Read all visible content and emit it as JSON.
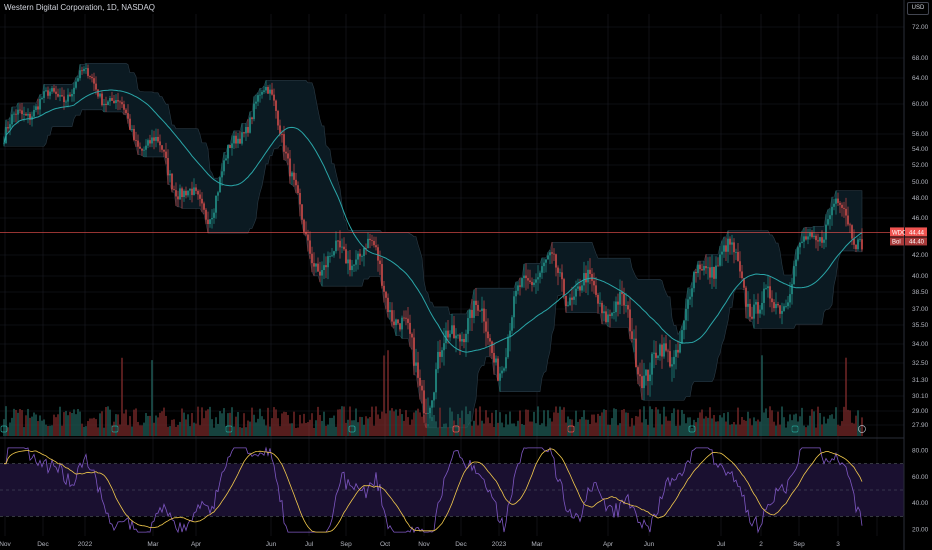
{
  "header": {
    "title": "Western Digital Corporation, 1D, NASDAQ",
    "currency": "USD"
  },
  "colors": {
    "background": "#000000",
    "grid": "#1b1d24",
    "up": "#26a69a",
    "down": "#ef5350",
    "channel_fill": "#0b1a22",
    "channel_line": "#2a3a45",
    "ma_line": "#2aa6a8",
    "price_line": "#ef5350",
    "rsi_line": "#7e57c2",
    "rsi_ma": "#f2c94c",
    "rsi_band": "#1a1030"
  },
  "chart_data": [
    {
      "type": "candlestick",
      "symbol": "WDC",
      "ylim": [
        27.5,
        75
      ],
      "y_ticks": [
        "72.00",
        "68.00",
        "64.00",
        "60.00",
        "56.00",
        "54.00",
        "52.00",
        "50.00",
        "48.00",
        "46.00",
        "42.00",
        "40.00",
        "38.50",
        "37.00",
        "35.50",
        "34.00",
        "32.50",
        "31.30",
        "30.10",
        "29.00",
        "27.90"
      ],
      "x_ticks": [
        "Nov",
        "Dec",
        "2022",
        "Mar",
        "Apr",
        "Jun",
        "Jul",
        "Sep",
        "Oct",
        "Nov",
        "Dec",
        "2023",
        "Mar",
        "Apr",
        "Jun",
        "Jul",
        "2",
        "Sep",
        "3"
      ],
      "price_key_points": [
        {
          "x": "Nov",
          "y": 55.5
        },
        {
          "x": "Dec",
          "y": 58.5
        },
        {
          "x": "2022",
          "y": 66.0
        },
        {
          "x": "Mar",
          "y": 52.0
        },
        {
          "x": "Apr",
          "y": 49.0
        },
        {
          "x": "Jun",
          "y": 59.0
        },
        {
          "x": "Jul",
          "y": 44.5
        },
        {
          "x": "Sep",
          "y": 42.0
        },
        {
          "x": "Oct",
          "y": 33.0
        },
        {
          "x": "Nov",
          "y": 36.0
        },
        {
          "x": "Dec",
          "y": 31.5
        },
        {
          "x": "2023",
          "y": 43.0
        },
        {
          "x": "Mar",
          "y": 35.5
        },
        {
          "x": "Apr",
          "y": 34.0
        },
        {
          "x": "Jun",
          "y": 40.0
        },
        {
          "x": "Jul",
          "y": 38.5
        },
        {
          "x": "2",
          "y": 42.0
        },
        {
          "x": "Sep",
          "y": 44.4
        }
      ],
      "last_price_label": {
        "symbol": "WDC",
        "value": "44.44"
      },
      "second_label": {
        "name": "Bol",
        "value": "44.40"
      },
      "volume": true,
      "events_row": true
    },
    {
      "type": "line",
      "name": "RSI",
      "ylim": [
        15,
        85
      ],
      "y_ticks": [
        "80.00",
        "60.00",
        "40.00",
        "20.00"
      ],
      "levels": [
        70,
        50,
        30
      ]
    }
  ]
}
